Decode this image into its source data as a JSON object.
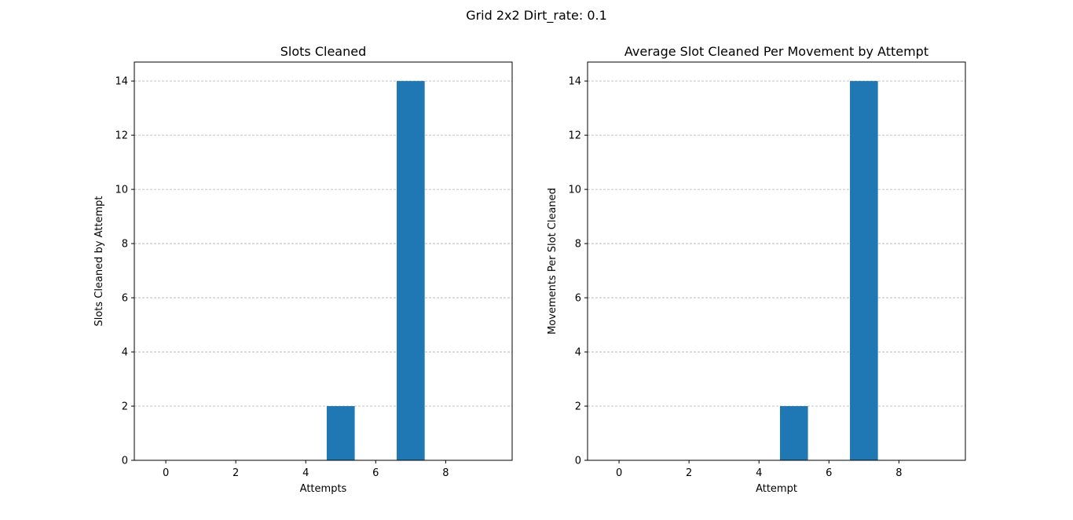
{
  "figure": {
    "suptitle": "Grid 2x2 Dirt_rate: 0.1",
    "bar_color": "#1f77b4",
    "grid_color": "#b0b0b0"
  },
  "chart_data": [
    {
      "type": "bar",
      "title": "Slots Cleaned",
      "xlabel": "Attempts",
      "ylabel": "Slots Cleaned by Attempt",
      "x": [
        0,
        1,
        2,
        3,
        4,
        5,
        6,
        7,
        8,
        9
      ],
      "values": [
        0,
        0,
        0,
        0,
        0,
        2,
        0,
        14,
        0,
        0
      ],
      "xlim": [
        -0.9,
        9.9
      ],
      "ylim": [
        0,
        14.7
      ],
      "xticks": [
        0,
        2,
        4,
        6,
        8
      ],
      "yticks": [
        0,
        2,
        4,
        6,
        8,
        10,
        12,
        14
      ],
      "grid": "y-dashed"
    },
    {
      "type": "bar",
      "title": "Average Slot Cleaned Per Movement by Attempt",
      "xlabel": "Attempt",
      "ylabel": "Movements Per Slot Cleaned",
      "x": [
        0,
        1,
        2,
        3,
        4,
        5,
        6,
        7,
        8,
        9
      ],
      "values": [
        0,
        0,
        0,
        0,
        0,
        2,
        0,
        14,
        0,
        0
      ],
      "xlim": [
        -0.9,
        9.9
      ],
      "ylim": [
        0,
        14.7
      ],
      "xticks": [
        0,
        2,
        4,
        6,
        8
      ],
      "yticks": [
        0,
        2,
        4,
        6,
        8,
        10,
        12,
        14
      ],
      "grid": "y-dashed"
    }
  ]
}
